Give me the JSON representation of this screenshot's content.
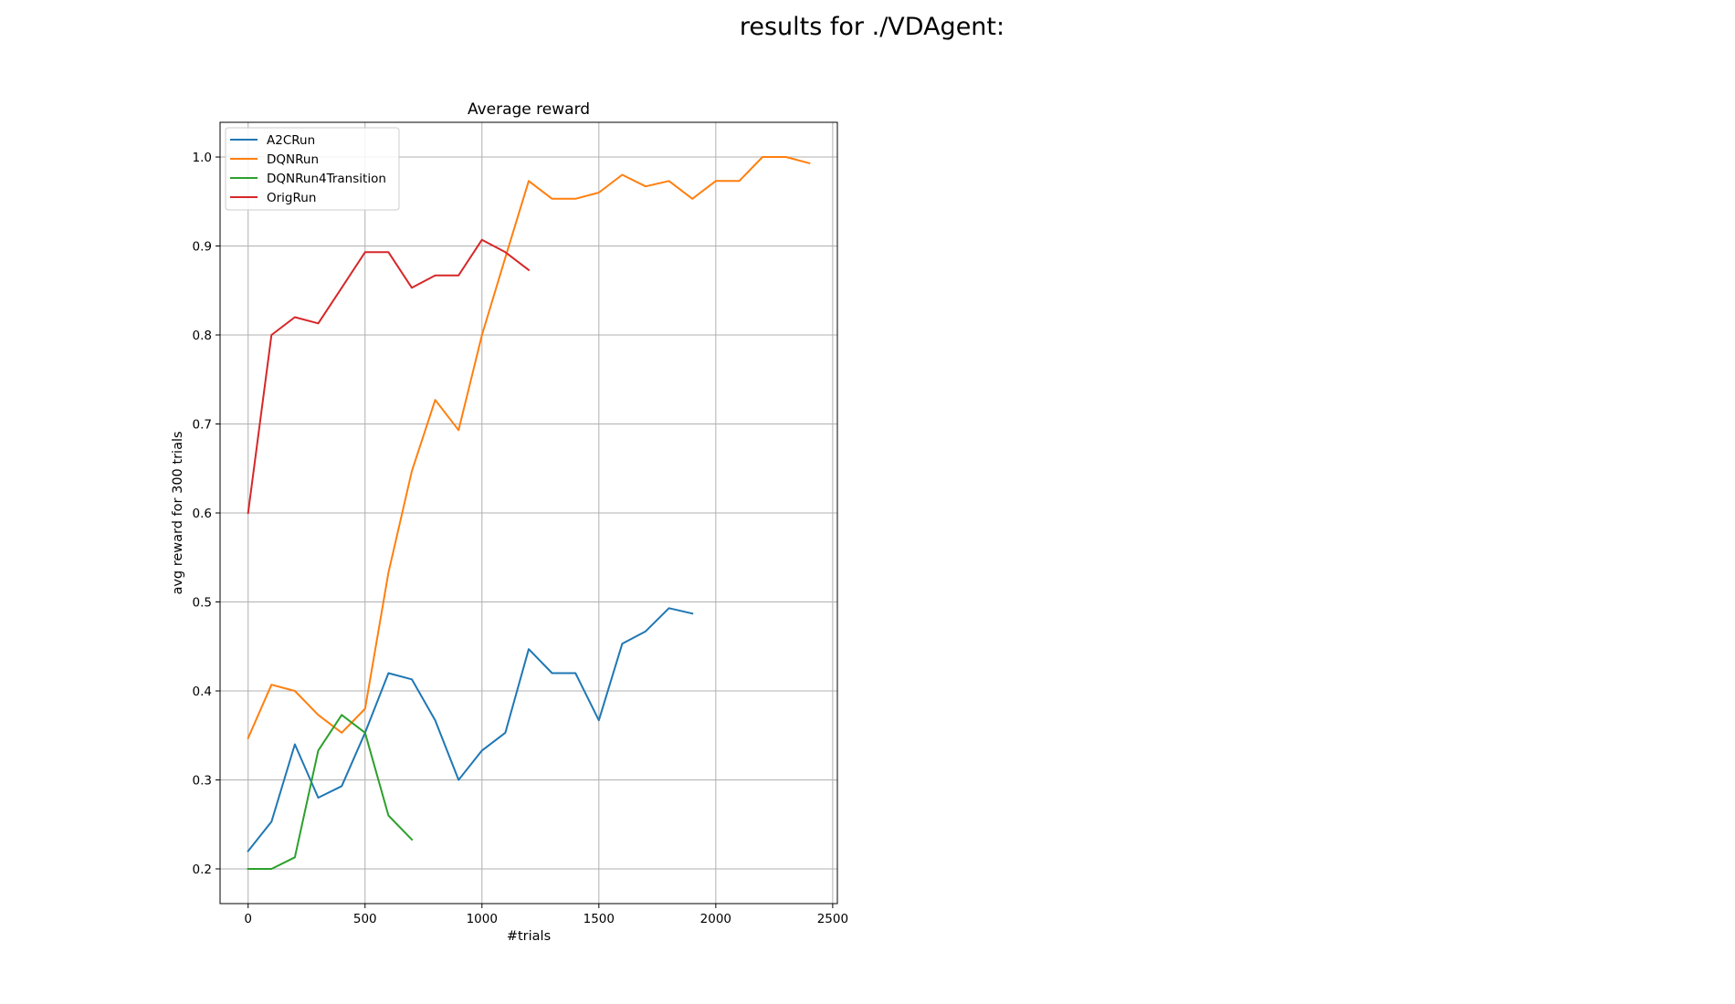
{
  "suptitle": "results for ./VDAgent:",
  "chart_data": {
    "type": "line",
    "title": "Average reward",
    "xlabel": "#trials",
    "ylabel": "avg reward for 300 trials",
    "xlim": [
      -120,
      2520
    ],
    "ylim": [
      0.161,
      1.039
    ],
    "xticks": [
      0,
      500,
      1000,
      1500,
      2000,
      2500
    ],
    "xtick_labels": [
      "0",
      "500",
      "1000",
      "1500",
      "2000",
      "2500"
    ],
    "yticks": [
      0.2,
      0.3,
      0.4,
      0.5,
      0.6,
      0.7,
      0.8,
      0.9,
      1.0
    ],
    "ytick_labels": [
      "0.2",
      "0.3",
      "0.4",
      "0.5",
      "0.6",
      "0.7",
      "0.8",
      "0.9",
      "1.0"
    ],
    "grid": true,
    "legend_position": "top-left",
    "series": [
      {
        "name": "A2CRun",
        "color": "#1f77b4",
        "x": [
          0,
          100,
          200,
          300,
          400,
          500,
          600,
          700,
          800,
          900,
          1000,
          1100,
          1200,
          1300,
          1400,
          1500,
          1600,
          1700,
          1800,
          1900
        ],
        "y": [
          0.22,
          0.253,
          0.34,
          0.28,
          0.293,
          0.353,
          0.42,
          0.413,
          0.367,
          0.3,
          0.333,
          0.353,
          0.447,
          0.42,
          0.42,
          0.367,
          0.453,
          0.467,
          0.493,
          0.487
        ]
      },
      {
        "name": "DQNRun",
        "color": "#ff7f0e",
        "x": [
          0,
          100,
          200,
          300,
          400,
          500,
          600,
          700,
          800,
          900,
          1000,
          1100,
          1200,
          1300,
          1400,
          1500,
          1600,
          1700,
          1800,
          1900,
          2000,
          2100,
          2200,
          2300,
          2400
        ],
        "y": [
          0.347,
          0.407,
          0.4,
          0.373,
          0.353,
          0.38,
          0.533,
          0.647,
          0.727,
          0.693,
          0.8,
          0.887,
          0.973,
          0.953,
          0.953,
          0.96,
          0.98,
          0.967,
          0.973,
          0.953,
          0.973,
          0.973,
          1.0,
          1.0,
          0.993
        ]
      },
      {
        "name": "DQNRun4Transition",
        "color": "#2ca02c",
        "x": [
          0,
          100,
          200,
          300,
          400,
          500,
          600,
          700
        ],
        "y": [
          0.2,
          0.2,
          0.213,
          0.333,
          0.373,
          0.353,
          0.26,
          0.233
        ]
      },
      {
        "name": "OrigRun",
        "color": "#d62728",
        "x": [
          0,
          100,
          200,
          300,
          400,
          500,
          600,
          700,
          800,
          900,
          1000,
          1100,
          1200
        ],
        "y": [
          0.6,
          0.8,
          0.82,
          0.813,
          0.853,
          0.893,
          0.893,
          0.853,
          0.867,
          0.867,
          0.907,
          0.893,
          0.873
        ]
      }
    ]
  }
}
